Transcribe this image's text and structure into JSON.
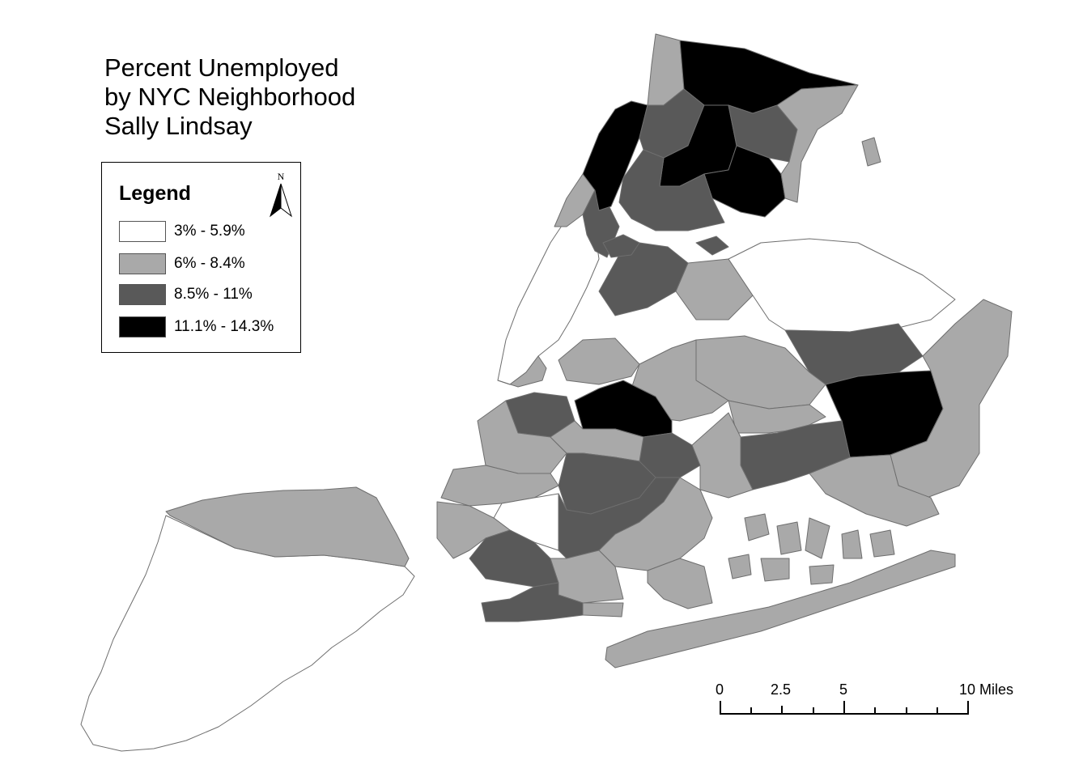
{
  "title": {
    "lines": [
      "Percent Unemployed",
      "by NYC Neighborhood",
      "Sally Lindsay"
    ]
  },
  "legend": {
    "title": "Legend",
    "north_label": "N",
    "items": [
      {
        "label": "3% - 5.9%",
        "color": "#ffffff"
      },
      {
        "label": "6% - 8.4%",
        "color": "#a9a9a9"
      },
      {
        "label": "8.5% - 11%",
        "color": "#595959"
      },
      {
        "label": "11.1% - 14.3%",
        "color": "#000000"
      }
    ]
  },
  "scale_bar": {
    "labels": [
      "0",
      "2.5",
      "5",
      "10 Miles"
    ]
  },
  "colors": {
    "class1": "#ffffff",
    "class2": "#a9a9a9",
    "class3": "#595959",
    "class4": "#000000",
    "outline": "#6e6e6e"
  }
}
